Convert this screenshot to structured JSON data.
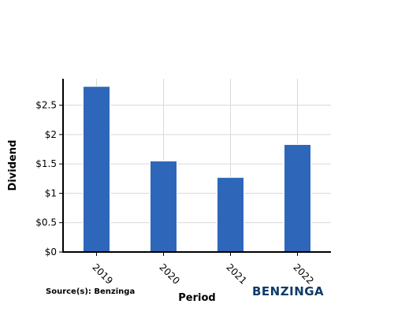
{
  "chart_data": {
    "type": "bar",
    "categories": [
      "2019",
      "2020",
      "2021",
      "2022"
    ],
    "values": [
      2.82,
      1.55,
      1.27,
      1.83
    ],
    "xlabel": "Period",
    "ylabel": "Dividend",
    "ylim": [
      0,
      2.95
    ],
    "yticks": [
      0,
      0.5,
      1,
      1.5,
      2,
      2.5
    ],
    "ytick_labels": [
      "$0",
      "$0.5",
      "$1",
      "$1.5",
      "$2",
      "$2.5"
    ],
    "grid": true,
    "bar_color": "#2e67b9"
  },
  "footer": {
    "source": "Source(s): Benzinga",
    "brand": "BENZINGA",
    "brand_color": "#0d3b66"
  }
}
